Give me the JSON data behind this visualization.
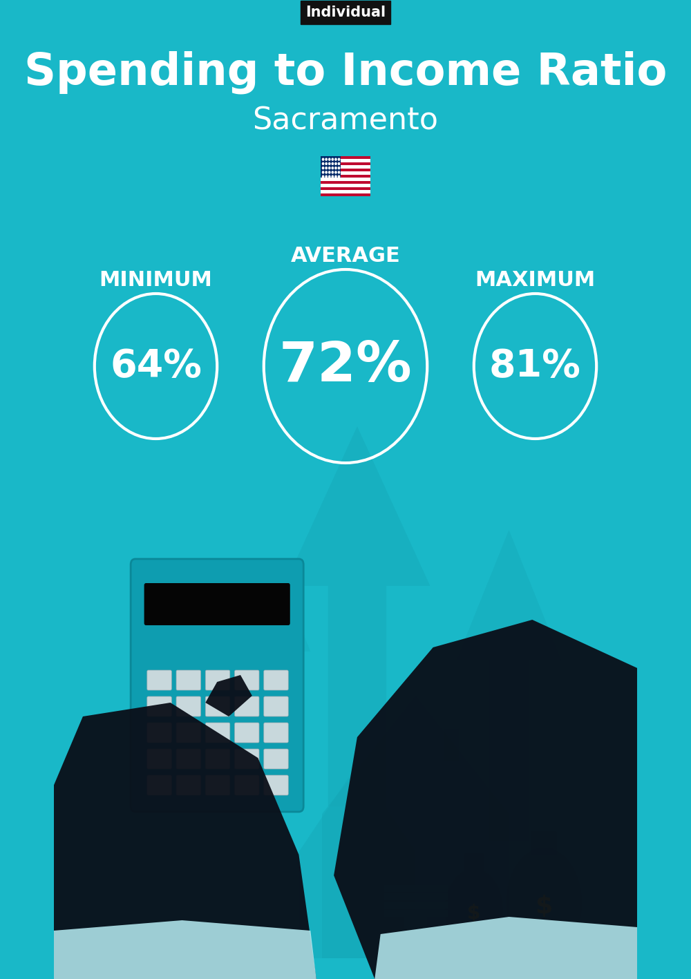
{
  "title": "Spending to Income Ratio",
  "subtitle": "Sacramento",
  "tag_label": "Individual",
  "background_color": "#19B8C8",
  "min_label": "MINIMUM",
  "avg_label": "AVERAGE",
  "max_label": "MAXIMUM",
  "min_value": "64%",
  "avg_value": "72%",
  "max_value": "81%",
  "circle_edge_color": "#FFFFFF",
  "text_color": "#FFFFFF",
  "tag_bg_color": "#111111",
  "tag_text_color": "#FFFFFF",
  "title_fontsize": 46,
  "subtitle_fontsize": 32,
  "label_fontsize": 22,
  "value_fontsize_small": 40,
  "value_fontsize_large": 58,
  "tag_fontsize": 15,
  "arrow_color": "#15A8B8",
  "house_color": "#15A8B8",
  "calc_body_color": "#0E9DB0",
  "calc_display_color": "#050505",
  "btn_color": "#C8D8DC",
  "hand_color": "#0A0E18",
  "cuff_color": "#B8EEF5",
  "fig_width": 10.0,
  "fig_height": 14.17
}
